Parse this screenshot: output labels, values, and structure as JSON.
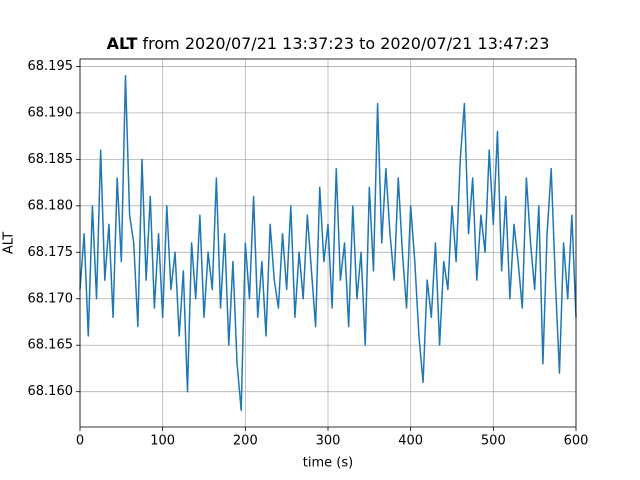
{
  "chart_data": {
    "type": "line",
    "title_variable": "ALT",
    "title": "from 2020/07/21 13:37:23 to 2020/07/21 13:47:23",
    "x_label": "time (s)",
    "y_label": "ALT",
    "xlim": [
      0,
      600
    ],
    "xticks": [
      0,
      100,
      200,
      300,
      400,
      500,
      600
    ],
    "ylim": [
      68.1562,
      68.1958
    ],
    "yticks": [
      {
        "value": 68.16,
        "label": "68.160"
      },
      68.165,
      {
        "value": 68.17,
        "label": "68.170"
      },
      68.175,
      {
        "value": 68.18,
        "label": "68.180"
      },
      68.185,
      {
        "value": 68.19,
        "label": "68.190"
      },
      68.195
    ],
    "grid": true,
    "x": [
      0,
      5,
      10,
      15,
      20,
      25,
      30,
      35,
      40,
      45,
      50,
      55,
      60,
      65,
      70,
      75,
      80,
      85,
      90,
      95,
      100,
      105,
      110,
      115,
      120,
      125,
      130,
      135,
      140,
      145,
      150,
      155,
      160,
      165,
      170,
      175,
      180,
      185,
      190,
      195,
      200,
      205,
      210,
      215,
      220,
      225,
      230,
      235,
      240,
      245,
      250,
      255,
      260,
      265,
      270,
      275,
      280,
      285,
      290,
      295,
      300,
      305,
      310,
      315,
      320,
      325,
      330,
      335,
      340,
      345,
      350,
      355,
      360,
      365,
      370,
      375,
      380,
      385,
      390,
      395,
      400,
      405,
      410,
      415,
      420,
      425,
      430,
      435,
      440,
      445,
      450,
      455,
      460,
      465,
      470,
      475,
      480,
      485,
      490,
      495,
      500,
      505,
      510,
      515,
      520,
      525,
      530,
      535,
      540,
      545,
      550,
      555,
      560,
      565,
      570,
      575,
      580,
      585,
      590,
      595,
      600
    ],
    "series": [
      {
        "color": "#1f77b4",
        "values": [
          68.171,
          68.177,
          68.166,
          68.18,
          68.17,
          68.186,
          68.172,
          68.178,
          68.168,
          68.183,
          68.174,
          68.194,
          68.179,
          68.176,
          68.167,
          68.185,
          68.172,
          68.181,
          68.169,
          68.177,
          68.168,
          68.18,
          68.171,
          68.175,
          68.166,
          68.173,
          68.16,
          68.176,
          68.17,
          68.179,
          68.168,
          68.175,
          68.171,
          68.183,
          68.169,
          68.177,
          68.165,
          68.174,
          68.163,
          68.158,
          68.176,
          68.17,
          68.181,
          68.168,
          68.174,
          68.166,
          68.178,
          68.172,
          68.169,
          68.177,
          68.171,
          68.18,
          68.168,
          68.175,
          68.17,
          68.179,
          68.173,
          68.167,
          68.182,
          68.174,
          68.178,
          68.169,
          68.184,
          68.172,
          68.176,
          68.167,
          68.18,
          68.17,
          68.175,
          68.165,
          68.182,
          68.173,
          68.191,
          68.176,
          68.184,
          68.177,
          68.172,
          68.183,
          68.175,
          68.169,
          68.18,
          68.174,
          68.166,
          68.161,
          68.172,
          68.168,
          68.176,
          68.165,
          68.174,
          68.171,
          68.18,
          68.174,
          68.185,
          68.191,
          68.177,
          68.183,
          68.172,
          68.179,
          68.175,
          68.186,
          68.178,
          68.188,
          68.173,
          68.181,
          68.17,
          68.178,
          68.174,
          68.169,
          68.183,
          68.176,
          68.171,
          68.18,
          68.163,
          68.177,
          68.184,
          68.172,
          68.162,
          68.176,
          68.17,
          68.179,
          68.168
        ]
      }
    ]
  }
}
